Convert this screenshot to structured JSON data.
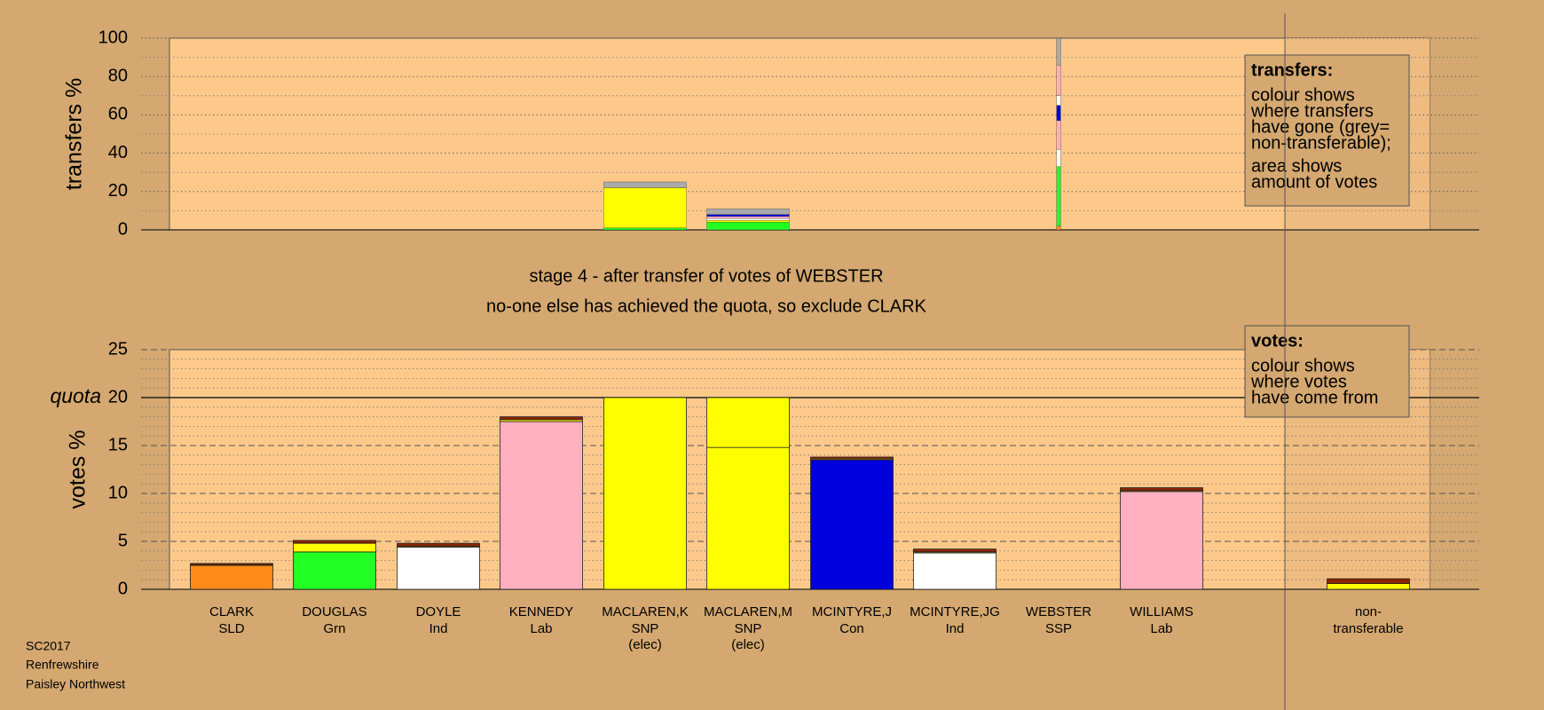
{
  "chart_data": [
    {
      "type": "bar",
      "stacked": true,
      "ylabel": "transfers %",
      "ylim": [
        0,
        100
      ],
      "yticks": [
        0,
        20,
        40,
        60,
        80,
        100
      ],
      "grid": "dotted",
      "minor_step": 10,
      "widths": [
        null,
        null,
        null,
        null,
        1,
        1,
        null,
        null,
        0.05,
        null,
        null
      ],
      "series": [
        {
          "color": "#ff8c1a",
          "values": [
            null,
            null,
            null,
            null,
            null,
            null,
            null,
            null,
            2,
            null,
            null
          ]
        },
        {
          "color": "#22ff22",
          "values": [
            null,
            null,
            null,
            null,
            1,
            4,
            null,
            null,
            31,
            null,
            null
          ]
        },
        {
          "color": "#ffff00",
          "values": [
            null,
            null,
            null,
            null,
            21,
            1,
            null,
            null,
            null,
            null,
            null
          ]
        },
        {
          "color": "#ffffff",
          "values": [
            null,
            null,
            null,
            null,
            null,
            1,
            null,
            null,
            9,
            null,
            null
          ]
        },
        {
          "color": "#ffb0c0",
          "values": [
            null,
            null,
            null,
            null,
            null,
            1,
            null,
            null,
            15,
            null,
            null
          ]
        },
        {
          "color": "#0000dd",
          "values": [
            null,
            null,
            null,
            null,
            null,
            1,
            null,
            null,
            8,
            null,
            null
          ]
        },
        {
          "color": "#ffffff",
          "values": [
            null,
            null,
            null,
            null,
            null,
            null,
            null,
            null,
            5,
            null,
            null
          ]
        },
        {
          "color": "#ffb0c0",
          "values": [
            null,
            null,
            null,
            null,
            null,
            null,
            null,
            null,
            16,
            null,
            null
          ]
        },
        {
          "color": "#aaaaaa",
          "values": [
            null,
            null,
            null,
            null,
            3,
            3,
            null,
            null,
            14,
            null,
            null
          ]
        }
      ],
      "note": {
        "title": "transfers:",
        "paragraphs": [
          [
            "colour shows",
            "where transfers",
            "have gone (grey=",
            "non-transferable);"
          ],
          [
            "area shows",
            "amount of votes"
          ]
        ]
      }
    },
    {
      "type": "bar",
      "stacked": true,
      "ylabel": "votes %",
      "categories": [
        "CLARK",
        "DOUGLAS",
        "DOYLE",
        "KENNEDY",
        "MACLAREN,K",
        "MACLAREN,M",
        "MCINTYRE,J",
        "MCINTYRE,JG",
        "WEBSTER",
        "WILLIAMS",
        "non-"
      ],
      "parties": [
        "SLD",
        "Grn",
        "Ind",
        "Lab",
        "SNP",
        "SNP",
        "Con",
        "Ind",
        "SSP",
        "Lab",
        "transferable"
      ],
      "notes": [
        null,
        null,
        null,
        null,
        "(elec)",
        "(elec)",
        null,
        null,
        null,
        null,
        null
      ],
      "ylim": [
        0,
        25
      ],
      "yticks": [
        0,
        5,
        10,
        15,
        20,
        25
      ],
      "grid": "dashed",
      "minor_step": 1,
      "quota": {
        "value": 20,
        "label": "quota"
      },
      "series": [
        {
          "colors": [
            "#ff8c1a",
            "#22ff22",
            "#ffffff",
            "#ffb0c0",
            "#ffff00",
            "#ffff00",
            "#0000dd",
            "#ffffff",
            null,
            "#ffb0c0",
            null
          ],
          "values": [
            2.5,
            3.9,
            4.4,
            17.5,
            20,
            14.8,
            13.5,
            3.8,
            null,
            10.2,
            null
          ]
        },
        {
          "color": "#ffff00",
          "values": [
            0.05,
            0.9,
            0.1,
            0.2,
            null,
            5.2,
            0.1,
            0.1,
            null,
            0.1,
            0.6
          ]
        },
        {
          "color": "#8b2500",
          "values": [
            0.15,
            0.3,
            0.3,
            0.3,
            null,
            null,
            0.2,
            0.3,
            null,
            0.3,
            0.5
          ]
        }
      ],
      "note": {
        "title": "votes:",
        "paragraphs": [
          [
            "colour shows",
            "where votes",
            "have come from"
          ]
        ]
      }
    }
  ],
  "caption": [
    "stage 4 - after transfer of votes of WEBSTER",
    "no-one else has achieved the quota, so exclude CLARK"
  ],
  "footer": [
    "SC2017",
    "Renfrewshire",
    "Paisley Northwest"
  ]
}
